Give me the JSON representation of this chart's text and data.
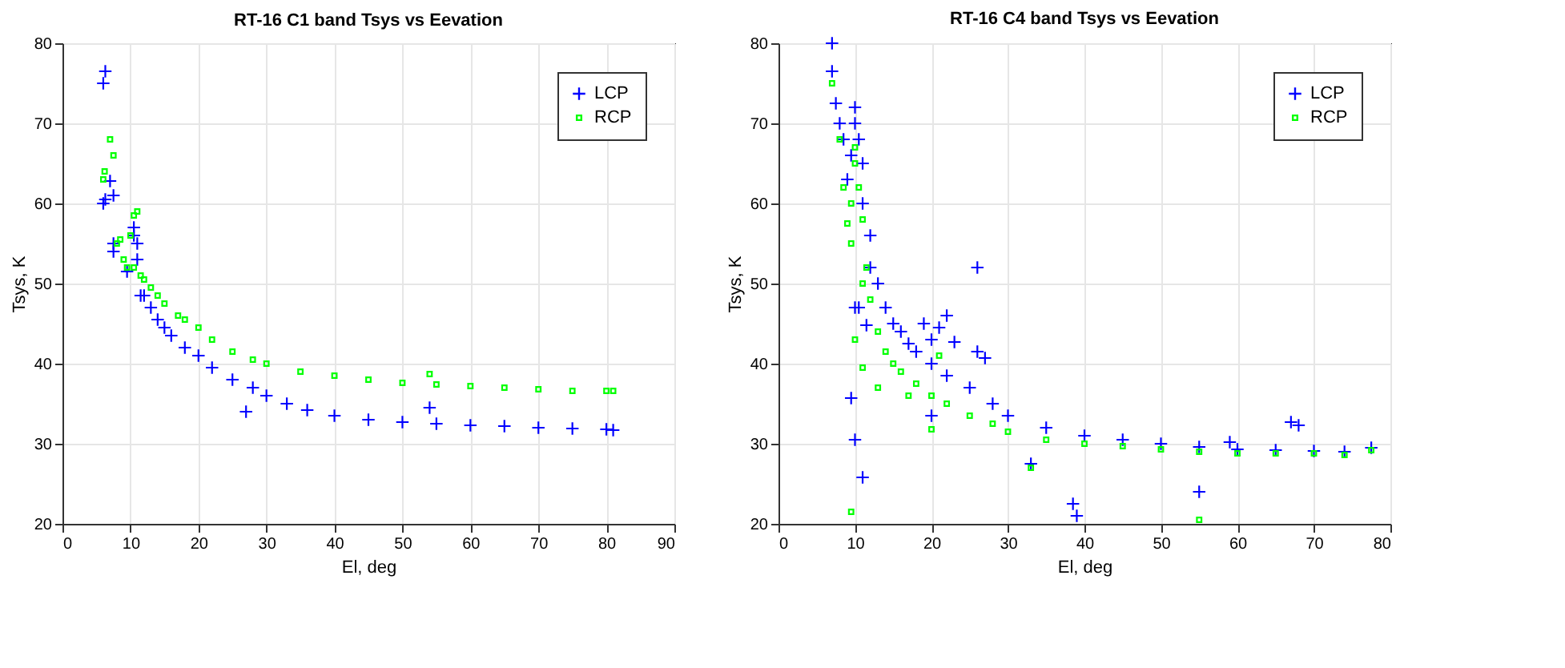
{
  "chart_data": [
    {
      "type": "scatter",
      "title": "RT-16 C1 band Tsys vs Eevation",
      "xlabel": "El, deg",
      "ylabel": "Tsys, K",
      "xlim": [
        0,
        90
      ],
      "xticks": [
        0,
        10,
        20,
        30,
        40,
        50,
        60,
        70,
        80,
        90
      ],
      "ylim": [
        20,
        80
      ],
      "yticks": [
        20,
        30,
        40,
        50,
        60,
        70,
        80
      ],
      "grid": true,
      "legend": "top right",
      "series": [
        {
          "name": "LCP",
          "color": "#0000ff",
          "marker": "cross",
          "x": [
            6,
            6.3,
            6,
            6.3,
            7,
            7.5,
            7.5,
            7.5,
            9.5,
            10.5,
            10.5,
            11,
            11,
            11.5,
            12,
            13,
            14,
            15,
            16,
            18,
            20,
            22,
            25,
            27,
            28,
            30,
            33,
            36,
            40,
            45,
            50,
            54,
            55,
            60,
            65,
            70,
            75,
            80,
            81
          ],
          "values": [
            75,
            76.5,
            60,
            60.5,
            62.8,
            61,
            55,
            54,
            51.5,
            56,
            57,
            55,
            53,
            48.5,
            48.5,
            47,
            45.5,
            44.5,
            43.5,
            42,
            41,
            39.5,
            38,
            34,
            37,
            36,
            35,
            34.2,
            33.5,
            33,
            32.7,
            34.5,
            32.5,
            32.3,
            32.2,
            32,
            31.9,
            31.8,
            31.7
          ]
        },
        {
          "name": "RCP",
          "color": "#00ff00",
          "marker": "square",
          "x": [
            6.2,
            6,
            7,
            7.5,
            8,
            8.5,
            9,
            9.5,
            10,
            10.5,
            11,
            10.5,
            11.5,
            12,
            13,
            14,
            15,
            17,
            18,
            20,
            22,
            25,
            28,
            30,
            35,
            40,
            45,
            50,
            54,
            55,
            60,
            65,
            70,
            75,
            80,
            81
          ],
          "values": [
            64,
            63,
            68,
            66,
            55,
            55.5,
            53,
            52,
            56,
            58.5,
            59,
            52,
            51,
            50.5,
            49.5,
            48.5,
            47.5,
            46,
            45.5,
            44.5,
            43,
            41.5,
            40.5,
            40,
            39,
            38.5,
            38,
            37.6,
            38.7,
            37.4,
            37.2,
            37,
            36.8,
            36.6,
            36.6,
            36.6
          ]
        }
      ]
    },
    {
      "type": "scatter",
      "title": "RT-16 C4 band Tsys vs Eevation",
      "xlabel": "El, deg",
      "ylabel": "Tsys, K",
      "xlim": [
        0,
        80
      ],
      "xticks": [
        0,
        10,
        20,
        30,
        40,
        50,
        60,
        70,
        80
      ],
      "ylim": [
        20,
        80
      ],
      "yticks": [
        20,
        30,
        40,
        50,
        60,
        70,
        80
      ],
      "grid": true,
      "legend": "top right",
      "series": [
        {
          "name": "LCP",
          "color": "#0000ff",
          "marker": "cross",
          "x": [
            7,
            7,
            7.5,
            8,
            8.5,
            9.5,
            9,
            10,
            10,
            10.5,
            11,
            11,
            12,
            12,
            13,
            14,
            15,
            16,
            17,
            18,
            20,
            22,
            25,
            28,
            30,
            35,
            40,
            45,
            50,
            55,
            60,
            65,
            70,
            74,
            10,
            10.5,
            9.5,
            11,
            11.5,
            21,
            22,
            19,
            20,
            26,
            23,
            26,
            27,
            20,
            33,
            38.5,
            39,
            55,
            67,
            68,
            77.5,
            59,
            10
          ],
          "values": [
            80,
            76.5,
            72.5,
            70,
            68,
            66,
            63,
            72,
            70,
            68,
            65,
            60,
            56,
            52,
            50,
            47,
            45,
            44,
            42.5,
            41.5,
            40,
            38.5,
            37,
            35,
            33.5,
            32,
            31,
            30.5,
            30,
            29.6,
            29.3,
            29.2,
            29.1,
            29,
            47,
            47,
            35.7,
            25.8,
            44.8,
            44.5,
            46,
            45,
            43,
            52,
            42.7,
            41.5,
            40.7,
            33.5,
            27.5,
            22.5,
            21,
            24,
            32.7,
            32.3,
            29.5,
            30.2,
            30.5
          ]
        },
        {
          "name": "RCP",
          "color": "#00ff00",
          "marker": "square",
          "x": [
            7,
            8,
            8.5,
            9,
            9.5,
            10,
            10,
            10.5,
            11,
            11,
            11.5,
            12,
            13,
            14,
            15,
            16,
            18,
            20,
            22,
            25,
            28,
            30,
            35,
            40,
            45,
            50,
            55,
            60,
            65,
            70,
            74,
            9.5,
            11,
            9.5,
            20,
            13,
            17,
            33,
            55,
            77.5,
            10,
            21
          ],
          "values": [
            75,
            68,
            62,
            57.5,
            60,
            65,
            67,
            62,
            58,
            50,
            52,
            48,
            44,
            41.5,
            40,
            39,
            37.5,
            36,
            35,
            33.5,
            32.5,
            31.5,
            30.5,
            30,
            29.7,
            29.3,
            29,
            28.8,
            28.8,
            28.8,
            28.6,
            55,
            39.5,
            21.5,
            31.8,
            37,
            36,
            27,
            20.5,
            29.2,
            43,
            41
          ]
        }
      ]
    }
  ]
}
